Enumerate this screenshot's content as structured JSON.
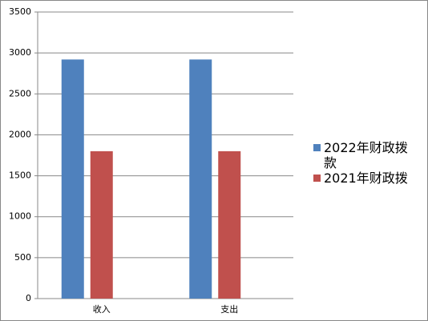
{
  "chart_data": {
    "type": "bar",
    "categories": [
      "收入",
      "支出"
    ],
    "series": [
      {
        "name": "2022年财政拨款",
        "color": "#4f81bd",
        "values": [
          2920,
          2920
        ]
      },
      {
        "name": "2021年财政拨",
        "color": "#c0504d",
        "values": [
          1800,
          1800
        ]
      }
    ],
    "ylim": [
      0,
      3500
    ],
    "yticks": [
      0,
      500,
      1000,
      1500,
      2000,
      2500,
      3000,
      3500
    ],
    "grid": true
  }
}
